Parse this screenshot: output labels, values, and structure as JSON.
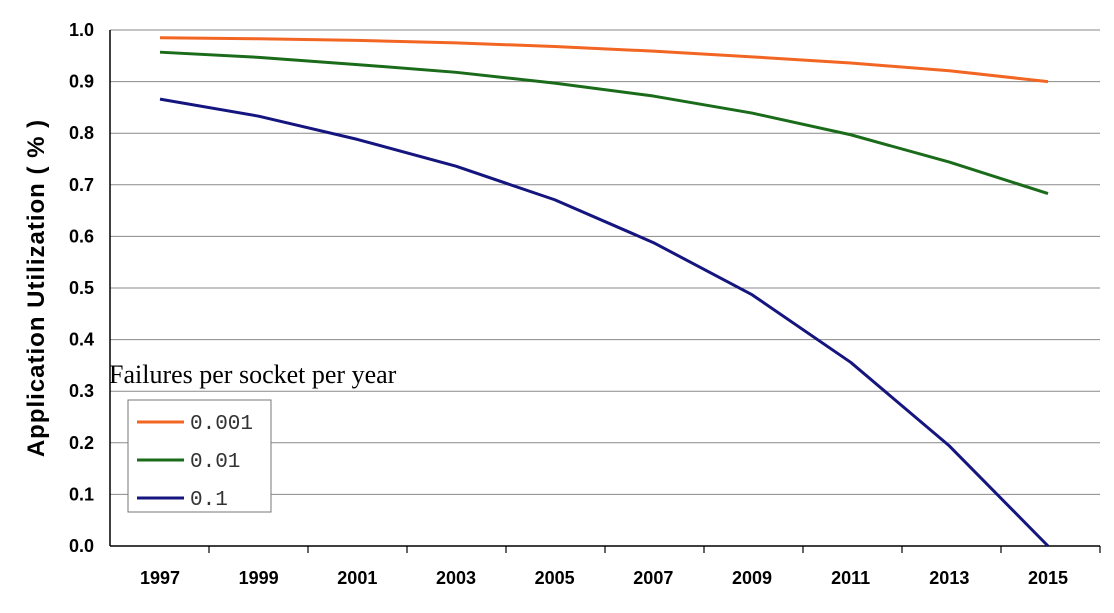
{
  "chart_data": {
    "type": "line",
    "ylabel": "Application Utilization ( % )",
    "xlabel": "",
    "x": [
      "1997",
      "1999",
      "2001",
      "2003",
      "2005",
      "2007",
      "2009",
      "2011",
      "2013",
      "2015"
    ],
    "ylim": [
      0.0,
      1.0
    ],
    "yticks": [
      "0.0",
      "0.1",
      "0.2",
      "0.3",
      "0.4",
      "0.5",
      "0.6",
      "0.7",
      "0.8",
      "0.9",
      "1.0"
    ],
    "grid": "horizontal",
    "legend": {
      "title": "Failures per socket per year",
      "placement": "left"
    },
    "series": [
      {
        "name": "0.001",
        "color": "#f26522",
        "values": [
          0.985,
          0.983,
          0.98,
          0.975,
          0.968,
          0.959,
          0.948,
          0.936,
          0.921,
          0.9
        ]
      },
      {
        "name": "0.01",
        "color": "#1a6b1a",
        "values": [
          0.957,
          0.947,
          0.933,
          0.918,
          0.897,
          0.872,
          0.839,
          0.797,
          0.744,
          0.683
        ]
      },
      {
        "name": "0.1",
        "color": "#15157f",
        "values": [
          0.866,
          0.833,
          0.788,
          0.736,
          0.671,
          0.588,
          0.487,
          0.356,
          0.194,
          0.0
        ]
      }
    ]
  }
}
